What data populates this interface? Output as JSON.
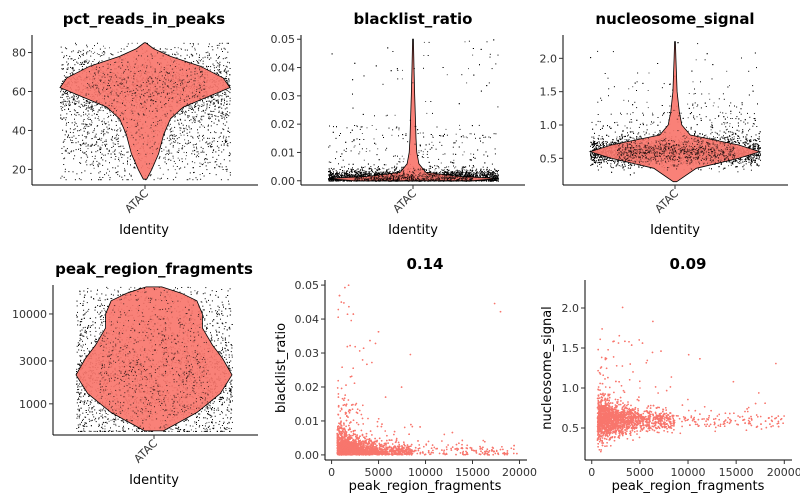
{
  "chart_data": [
    {
      "type": "violin",
      "title": "pct_reads_in_peaks",
      "xlabel": "Identity",
      "ylabel": "",
      "categories": [
        "ATAC"
      ],
      "yticks": [
        "20",
        "40",
        "60",
        "80"
      ],
      "ylim": [
        12,
        89
      ],
      "fill_color": "#F8766D",
      "points": "jittered cells, black",
      "distribution": {
        "min": 15,
        "max": 85,
        "mode": 62
      }
    },
    {
      "type": "violin",
      "title": "blacklist_ratio",
      "xlabel": "Identity",
      "ylabel": "",
      "categories": [
        "ATAC"
      ],
      "yticks": [
        "0.00",
        "0.01",
        "0.02",
        "0.03",
        "0.04",
        "0.05"
      ],
      "ylim": [
        -0.0015,
        0.0515
      ],
      "fill_color": "#F8766D",
      "points": "jittered cells, black",
      "distribution": {
        "min": 0.0,
        "max": 0.05,
        "mode": 0.001
      }
    },
    {
      "type": "violin",
      "title": "nucleosome_signal",
      "xlabel": "Identity",
      "ylabel": "",
      "categories": [
        "ATAC"
      ],
      "yticks": [
        "0.5",
        "1.0",
        "1.5",
        "2.0"
      ],
      "ylim": [
        0.1,
        2.35
      ],
      "fill_color": "#F8766D",
      "points": "jittered cells, black",
      "distribution": {
        "min": 0.15,
        "max": 2.25,
        "mode": 0.6
      }
    },
    {
      "type": "violin",
      "title": "peak_region_fragments",
      "xlabel": "Identity",
      "ylabel": "",
      "categories": [
        "ATAC"
      ],
      "yscale": "log",
      "yticks": [
        "1000",
        "3000",
        "10000"
      ],
      "ylim": [
        450,
        21000
      ],
      "fill_color": "#F8766D",
      "points": "jittered cells, black",
      "distribution": {
        "min": 500,
        "max": 20000,
        "mode": 2100
      }
    },
    {
      "type": "scatter",
      "title": "0.14",
      "xlabel": "peak_region_fragments",
      "ylabel": "blacklist_ratio",
      "xticks": [
        "0",
        "5000",
        "10000",
        "15000",
        "20000"
      ],
      "yticks": [
        "0.00",
        "0.01",
        "0.02",
        "0.03",
        "0.04",
        "0.05"
      ],
      "xlim": [
        -700,
        20800
      ],
      "ylim": [
        -0.0015,
        0.0515
      ],
      "point_color": "#F8766D",
      "correlation": 0.14
    },
    {
      "type": "scatter",
      "title": "0.09",
      "xlabel": "peak_region_fragments",
      "ylabel": "nucleosome_signal",
      "xticks": [
        "0",
        "5000",
        "10000",
        "15000",
        "20000"
      ],
      "yticks": [
        "0.5",
        "1.0",
        "1.5",
        "2.0"
      ],
      "xlim": [
        -700,
        20800
      ],
      "ylim": [
        0.1,
        2.35
      ],
      "point_color": "#F8766D",
      "correlation": 0.09
    }
  ]
}
